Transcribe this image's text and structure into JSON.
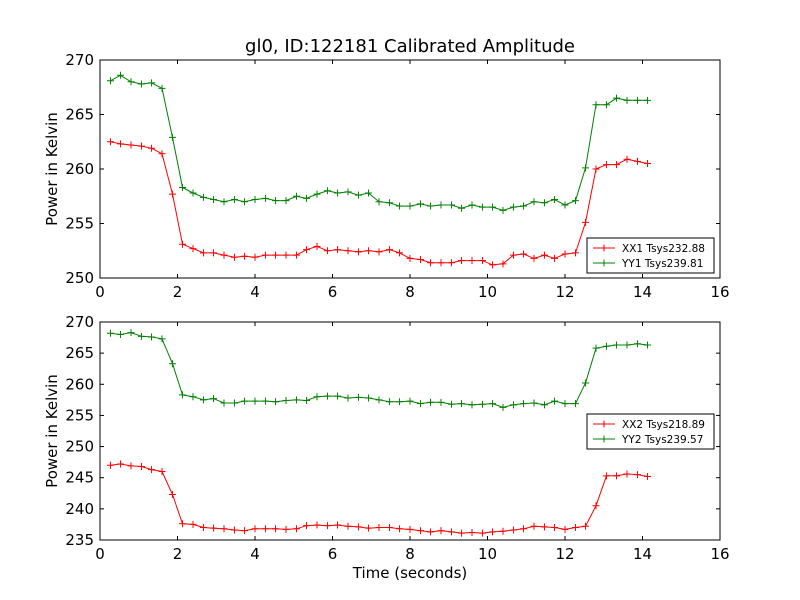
{
  "chart_data": [
    {
      "type": "line",
      "title": "gl0, ID:122181 Calibrated Amplitude",
      "xlabel": "",
      "ylabel": "Power in Kelvin",
      "xlim": [
        0,
        16
      ],
      "ylim": [
        250,
        270
      ],
      "xticks": [
        0,
        2,
        4,
        6,
        8,
        10,
        12,
        14,
        16
      ],
      "yticks": [
        250,
        255,
        260,
        265,
        270
      ],
      "legend_position": "lower-right",
      "x": [
        0.27,
        0.53,
        0.8,
        1.07,
        1.33,
        1.6,
        1.87,
        2.13,
        2.4,
        2.67,
        2.93,
        3.2,
        3.47,
        3.73,
        4.0,
        4.27,
        4.53,
        4.8,
        5.07,
        5.33,
        5.6,
        5.87,
        6.13,
        6.4,
        6.67,
        6.93,
        7.2,
        7.47,
        7.73,
        8.0,
        8.27,
        8.53,
        8.8,
        9.07,
        9.33,
        9.6,
        9.87,
        10.13,
        10.4,
        10.67,
        10.93,
        11.2,
        11.47,
        11.73,
        12.0,
        12.27,
        12.53,
        12.8,
        13.07,
        13.33,
        13.6,
        13.87,
        14.13
      ],
      "series": [
        {
          "name": "XX1 Tsys232.88",
          "color": "#ff0000",
          "values": [
            262.5,
            262.3,
            262.2,
            262.1,
            261.9,
            261.4,
            257.7,
            253.1,
            252.7,
            252.3,
            252.3,
            252.1,
            251.9,
            252.0,
            251.9,
            252.1,
            252.1,
            252.1,
            252.1,
            252.6,
            252.9,
            252.5,
            252.6,
            252.5,
            252.4,
            252.5,
            252.4,
            252.6,
            252.3,
            251.8,
            251.7,
            251.4,
            251.4,
            251.4,
            251.6,
            251.6,
            251.6,
            251.2,
            251.3,
            252.1,
            252.2,
            251.8,
            252.1,
            251.8,
            252.2,
            252.3,
            255.1,
            260.0,
            260.4,
            260.4,
            260.9,
            260.7,
            260.5
          ]
        },
        {
          "name": "YY1 Tsys239.81",
          "color": "#008000",
          "values": [
            268.1,
            268.6,
            268.0,
            267.8,
            267.9,
            267.4,
            262.9,
            258.3,
            257.8,
            257.4,
            257.2,
            257.0,
            257.2,
            257.0,
            257.2,
            257.3,
            257.1,
            257.1,
            257.5,
            257.3,
            257.7,
            258.0,
            257.8,
            257.9,
            257.6,
            257.8,
            257.0,
            256.9,
            256.6,
            256.6,
            256.8,
            256.6,
            256.7,
            256.7,
            256.4,
            256.7,
            256.5,
            256.5,
            256.2,
            256.5,
            256.6,
            257.0,
            256.9,
            257.2,
            256.7,
            257.1,
            260.1,
            265.9,
            265.9,
            266.5,
            266.3,
            266.3,
            266.3
          ]
        }
      ]
    },
    {
      "type": "line",
      "title": "",
      "xlabel": "Time (seconds)",
      "ylabel": "Power in Kelvin",
      "xlim": [
        0,
        16
      ],
      "ylim": [
        235,
        270
      ],
      "xticks": [
        0,
        2,
        4,
        6,
        8,
        10,
        12,
        14,
        16
      ],
      "yticks": [
        235,
        240,
        245,
        250,
        255,
        260,
        265,
        270
      ],
      "legend_position": "center-right",
      "x": [
        0.27,
        0.53,
        0.8,
        1.07,
        1.33,
        1.6,
        1.87,
        2.13,
        2.4,
        2.67,
        2.93,
        3.2,
        3.47,
        3.73,
        4.0,
        4.27,
        4.53,
        4.8,
        5.07,
        5.33,
        5.6,
        5.87,
        6.13,
        6.4,
        6.67,
        6.93,
        7.2,
        7.47,
        7.73,
        8.0,
        8.27,
        8.53,
        8.8,
        9.07,
        9.33,
        9.6,
        9.87,
        10.13,
        10.4,
        10.67,
        10.93,
        11.2,
        11.47,
        11.73,
        12.0,
        12.27,
        12.53,
        12.8,
        13.07,
        13.33,
        13.6,
        13.87,
        14.13
      ],
      "series": [
        {
          "name": "XX2 Tsys218.89",
          "color": "#ff0000",
          "values": [
            247.0,
            247.2,
            246.9,
            246.8,
            246.3,
            246.0,
            242.3,
            237.6,
            237.5,
            237.0,
            236.9,
            236.8,
            236.6,
            236.5,
            236.8,
            236.8,
            236.8,
            236.7,
            236.8,
            237.3,
            237.4,
            237.3,
            237.4,
            237.2,
            237.1,
            236.9,
            237.0,
            237.0,
            236.8,
            236.7,
            236.5,
            236.3,
            236.5,
            236.3,
            236.1,
            236.2,
            236.1,
            236.3,
            236.4,
            236.6,
            236.8,
            237.2,
            237.1,
            237.0,
            236.7,
            237.0,
            237.2,
            240.5,
            245.3,
            245.3,
            245.6,
            245.5,
            245.2
          ]
        },
        {
          "name": "YY2 Tsys239.57",
          "color": "#008000",
          "values": [
            268.2,
            268.0,
            268.3,
            267.7,
            267.6,
            267.3,
            263.3,
            258.3,
            258.0,
            257.5,
            257.7,
            257.0,
            257.0,
            257.3,
            257.3,
            257.3,
            257.2,
            257.4,
            257.5,
            257.4,
            258.0,
            258.1,
            258.1,
            257.8,
            257.9,
            257.8,
            257.5,
            257.2,
            257.2,
            257.3,
            256.9,
            257.1,
            257.1,
            256.8,
            256.9,
            256.7,
            256.8,
            256.9,
            256.3,
            256.7,
            256.9,
            257.0,
            256.7,
            257.3,
            256.9,
            256.9,
            260.2,
            265.8,
            266.1,
            266.3,
            266.3,
            266.5,
            266.3
          ]
        }
      ]
    }
  ]
}
